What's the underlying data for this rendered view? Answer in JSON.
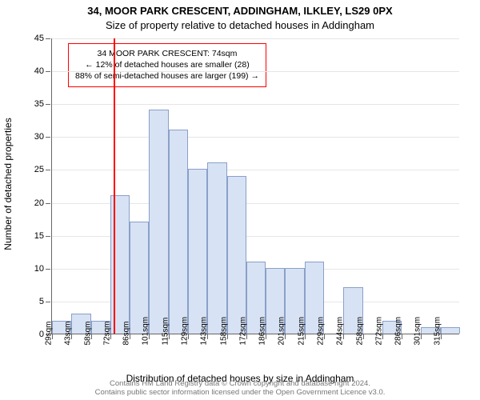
{
  "title_line1": "34, MOOR PARK CRESCENT, ADDINGHAM, ILKLEY, LS29 0PX",
  "title_line2": "Size of property relative to detached houses in Addingham",
  "ylabel": "Number of detached properties",
  "xlabel": "Distribution of detached houses by size in Addingham",
  "footer_line1": "Contains HM Land Registry data © Crown copyright and database right 2024.",
  "footer_line2": "Contains public sector information licensed under the Open Government Licence v3.0.",
  "chart": {
    "type": "histogram",
    "ylim": [
      0,
      45
    ],
    "ytick_step": 5,
    "bar_fill": "#d7e2f4",
    "bar_stroke": "#8aa0c8",
    "background_color": "#ffffff",
    "grid_color": "#e6e6e6",
    "axis_color": "#666666",
    "label_fontsize": 12,
    "tick_fontsize": 11,
    "x_labels": [
      "29sqm",
      "43sqm",
      "58sqm",
      "72sqm",
      "86sqm",
      "101sqm",
      "115sqm",
      "129sqm",
      "143sqm",
      "158sqm",
      "172sqm",
      "186sqm",
      "201sqm",
      "215sqm",
      "229sqm",
      "244sqm",
      "258sqm",
      "272sqm",
      "286sqm",
      "301sqm",
      "315sqm"
    ],
    "values": [
      2,
      3,
      2,
      21,
      17,
      34,
      31,
      25,
      26,
      24,
      11,
      10,
      10,
      11,
      0,
      7,
      0,
      2,
      0,
      1,
      1
    ],
    "marker": {
      "bin_index": 3,
      "fraction_in_bin": 0.15,
      "color": "#ff0000"
    },
    "annotation": {
      "border_color": "#ff0000",
      "lines": [
        "34 MOOR PARK CRESCENT: 74sqm",
        "← 12% of detached houses are smaller (28)",
        "88% of semi-detached houses are larger (199) →"
      ]
    }
  }
}
